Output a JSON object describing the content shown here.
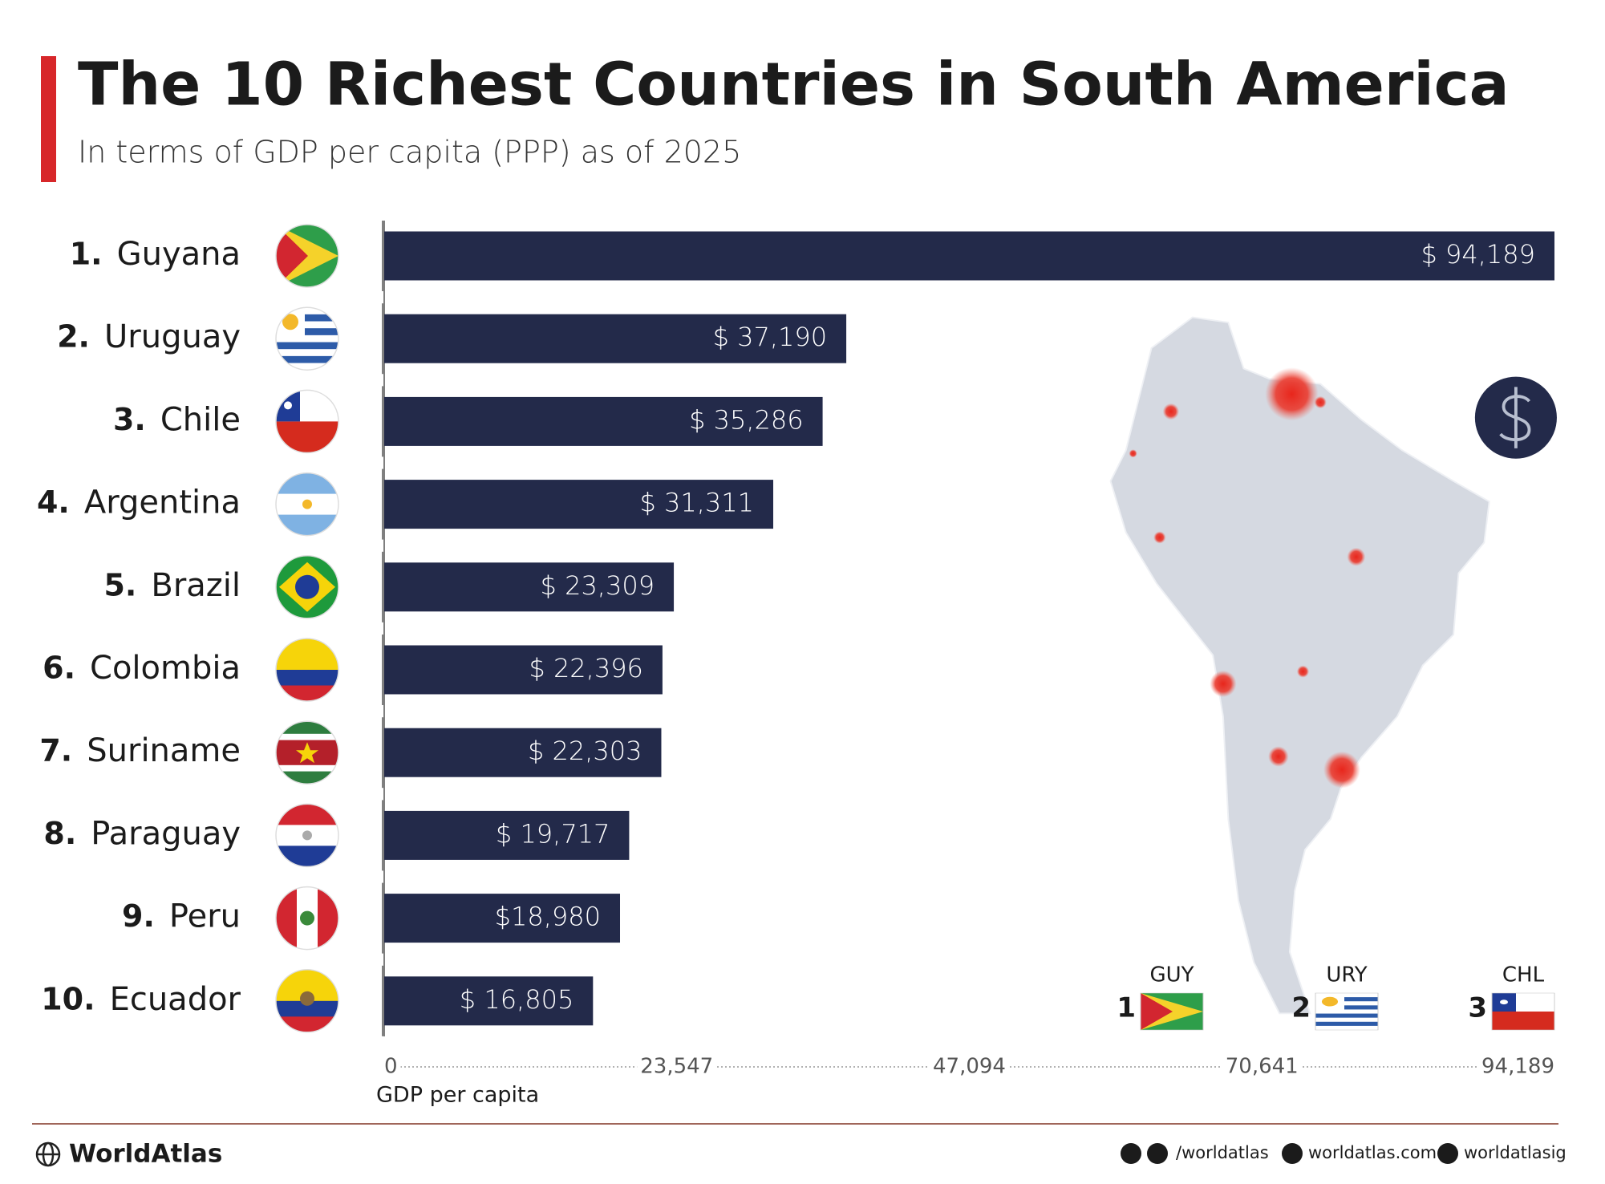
{
  "chart_data": {
    "type": "bar",
    "orientation": "horizontal",
    "title": "The 10 Richest Countries in South America",
    "subtitle": "In terms of GDP per capita (PPP) as of 2025",
    "ranks": [
      "1.",
      "2.",
      "3.",
      "4.",
      "5.",
      "6.",
      "7.",
      "8.",
      "9.",
      "10."
    ],
    "categories": [
      "Guyana",
      "Uruguay",
      "Chile",
      "Argentina",
      "Brazil",
      "Colombia",
      "Suriname",
      "Paraguay",
      "Peru",
      "Ecuador"
    ],
    "values": [
      94189,
      37190,
      35286,
      31311,
      23309,
      22396,
      22303,
      19717,
      18980,
      16805
    ],
    "value_labels": [
      "$ 94,189",
      "$ 37,190",
      "$ 35,286",
      "$ 31,311",
      "$ 23,309",
      "$ 22,396",
      "$ 22,303",
      "$ 19,717",
      "$18,980",
      "$ 16,805"
    ],
    "color": "#232a4a",
    "xlim": [
      0,
      94189
    ],
    "xticks": [
      0,
      {
        "value": 23547,
        "label": "23,547"
      },
      {
        "value": 47094,
        "label": "47,094"
      },
      {
        "value": 70641,
        "label": "70,641"
      },
      {
        "value": 94189,
        "label": "94,189"
      }
    ],
    "xlabel": "GDP per capita",
    "top3": [
      {
        "code": "GUY",
        "rank": "1"
      },
      {
        "code": "URY",
        "rank": "2"
      },
      {
        "code": "CHL",
        "rank": "3"
      }
    ]
  },
  "footer": {
    "brand": "WorldAtlas",
    "social": "/worldatlas",
    "website": "worldatlas.com",
    "instagram": "worldatlasig"
  }
}
